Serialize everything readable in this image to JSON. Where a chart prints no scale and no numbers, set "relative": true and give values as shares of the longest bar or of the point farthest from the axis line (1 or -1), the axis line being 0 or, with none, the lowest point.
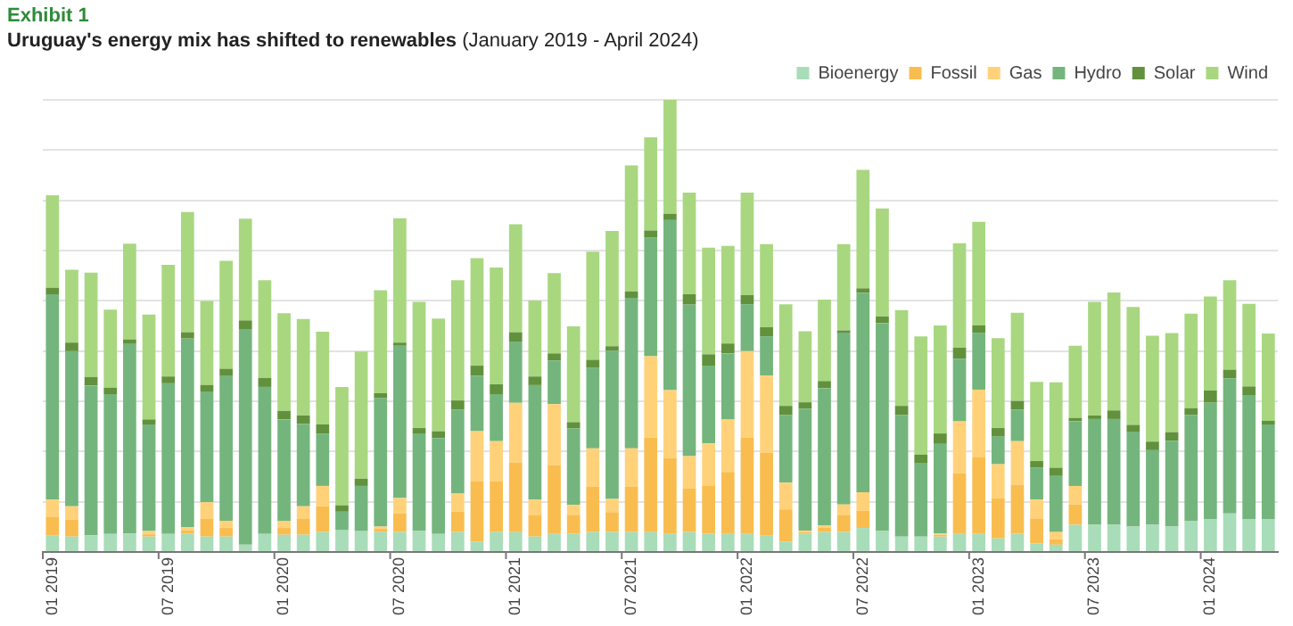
{
  "chart_data": {
    "type": "bar",
    "title": "Uruguay's energy mix has shifted to renewables",
    "subtitle": "(January 2019 - April 2024)",
    "annotations": [
      "Exhibit 1"
    ],
    "relative": true,
    "stacked": true,
    "grid": "y",
    "legend": "top right",
    "categories": [
      "01 2019",
      null,
      null,
      null,
      null,
      null,
      "07 2019",
      null,
      null,
      null,
      null,
      null,
      "01 2020",
      null,
      null,
      null,
      null,
      null,
      "07 2020",
      null,
      null,
      null,
      null,
      null,
      "01 2021",
      null,
      null,
      null,
      null,
      null,
      "07 2021",
      null,
      null,
      null,
      null,
      null,
      "01 2022",
      null,
      null,
      null,
      null,
      null,
      "07 2022",
      null,
      null,
      null,
      null,
      null,
      "01 2023",
      null,
      null,
      null,
      null,
      null,
      "07 2023",
      null,
      null,
      null,
      null,
      null,
      "01 2024",
      null,
      null,
      null
    ],
    "series": [
      {
        "name": "Bioenergy",
        "color": "#a9dcb9",
        "values": [
          0.037,
          0.034,
          0.037,
          0.04,
          0.041,
          0.034,
          0.04,
          0.04,
          0.034,
          0.034,
          0.016,
          0.04,
          0.038,
          0.038,
          0.044,
          0.048,
          0.046,
          0.044,
          0.044,
          0.046,
          0.04,
          0.044,
          0.023,
          0.044,
          0.044,
          0.034,
          0.04,
          0.04,
          0.044,
          0.044,
          0.044,
          0.044,
          0.04,
          0.044,
          0.04,
          0.04,
          0.04,
          0.037,
          0.023,
          0.04,
          0.044,
          0.044,
          0.053,
          0.046,
          0.034,
          0.034,
          0.034,
          0.04,
          0.04,
          0.03,
          0.04,
          0.019,
          0.016,
          0.06,
          0.06,
          0.06,
          0.056,
          0.06,
          0.056,
          0.068,
          0.072,
          0.085,
          0.072,
          0.072
        ]
      },
      {
        "name": "Fossil",
        "color": "#f9bd4f",
        "values": [
          0.041,
          0.037,
          null,
          null,
          null,
          0.005,
          null,
          0.008,
          0.04,
          0.019,
          null,
          null,
          0.015,
          0.036,
          0.057,
          null,
          null,
          0.007,
          0.041,
          null,
          null,
          0.045,
          0.133,
          0.112,
          0.153,
          0.048,
          0.152,
          0.042,
          0.1,
          0.044,
          0.1,
          0.209,
          0.168,
          0.096,
          0.107,
          0.137,
          0.213,
          0.182,
          0.071,
          0.004,
          0.01,
          0.038,
          0.038,
          null,
          null,
          null,
          0.004,
          0.134,
          0.169,
          0.089,
          0.109,
          0.055,
          0.012,
          0.045,
          null,
          null,
          null,
          null,
          null,
          null,
          null,
          null,
          null,
          null
        ]
      },
      {
        "name": "Gas",
        "color": "#ffd27a",
        "values": [
          0.038,
          0.03,
          null,
          null,
          null,
          0.007,
          null,
          0.007,
          0.036,
          0.016,
          null,
          null,
          0.015,
          0.027,
          0.045,
          null,
          null,
          0.005,
          0.034,
          null,
          null,
          0.04,
          0.111,
          0.089,
          0.133,
          0.034,
          0.135,
          0.022,
          0.085,
          0.029,
          0.085,
          0.18,
          0.15,
          0.072,
          0.093,
          0.116,
          0.191,
          0.171,
          0.059,
          0.003,
          0.005,
          0.023,
          0.041,
          null,
          null,
          null,
          0.003,
          0.115,
          0.15,
          0.075,
          0.096,
          0.042,
          0.016,
          0.041,
          null,
          null,
          null,
          null,
          null,
          null,
          null,
          null,
          null,
          null
        ]
      },
      {
        "name": "Hydro",
        "color": "#74b57d",
        "values": [
          0.454,
          0.343,
          0.331,
          0.309,
          0.419,
          0.236,
          0.333,
          0.417,
          0.245,
          0.32,
          0.477,
          0.325,
          0.225,
          0.182,
          0.116,
          0.041,
          0.1,
          0.284,
          0.337,
          0.216,
          0.212,
          0.186,
          0.123,
          0.104,
          0.134,
          0.253,
          0.096,
          0.169,
          0.178,
          0.328,
          0.333,
          0.262,
          0.376,
          0.335,
          0.172,
          0.146,
          0.104,
          0.087,
          0.15,
          0.27,
          0.303,
          0.38,
          0.441,
          0.46,
          0.269,
          0.163,
          0.198,
          0.138,
          0.126,
          0.061,
          0.07,
          0.071,
          0.124,
          0.143,
          0.234,
          0.234,
          0.21,
          0.165,
          0.19,
          0.235,
          0.258,
          0.299,
          0.275,
          0.21
        ]
      },
      {
        "name": "Solar",
        "color": "#62913d",
        "values": [
          0.014,
          0.019,
          0.019,
          0.014,
          0.01,
          0.011,
          0.015,
          0.014,
          0.014,
          0.016,
          0.019,
          0.02,
          0.019,
          0.019,
          0.02,
          0.014,
          0.016,
          0.011,
          0.007,
          0.012,
          0.015,
          0.02,
          0.022,
          0.022,
          0.022,
          0.019,
          0.016,
          0.014,
          0.018,
          0.01,
          0.014,
          0.016,
          0.014,
          0.023,
          0.025,
          0.022,
          0.02,
          0.02,
          0.02,
          0.014,
          0.016,
          0.005,
          0.01,
          0.015,
          0.02,
          0.018,
          0.023,
          0.025,
          0.016,
          0.019,
          0.019,
          0.014,
          0.018,
          0.007,
          0.008,
          0.019,
          0.015,
          0.019,
          0.019,
          0.015,
          0.027,
          0.019,
          0.019,
          0.008
        ]
      },
      {
        "name": "Wind",
        "color": "#a8d780",
        "values": [
          0.205,
          0.161,
          0.231,
          0.173,
          0.212,
          0.232,
          0.247,
          0.266,
          0.186,
          0.239,
          0.225,
          0.216,
          0.216,
          0.213,
          0.205,
          0.262,
          0.281,
          0.228,
          0.275,
          0.279,
          0.249,
          0.266,
          0.238,
          0.258,
          0.239,
          0.168,
          0.178,
          0.212,
          0.239,
          0.255,
          0.279,
          0.206,
          0.252,
          0.225,
          0.236,
          0.216,
          0.227,
          0.184,
          0.225,
          0.157,
          0.18,
          0.191,
          0.262,
          0.239,
          0.212,
          0.262,
          0.239,
          0.231,
          0.229,
          0.199,
          0.195,
          0.175,
          0.189,
          0.16,
          0.251,
          0.261,
          0.261,
          0.234,
          0.219,
          0.209,
          0.208,
          0.198,
          0.183,
          0.193
        ]
      }
    ]
  }
}
